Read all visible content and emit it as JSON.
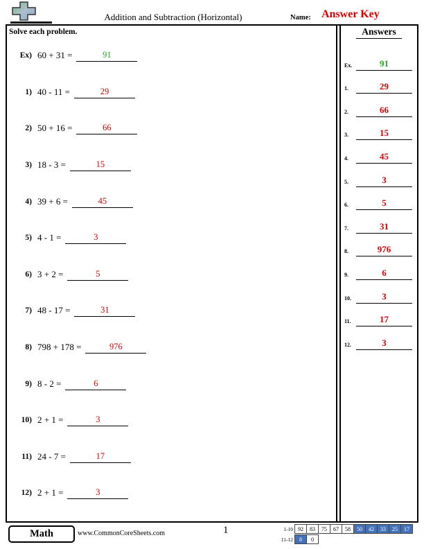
{
  "header": {
    "title": "Addition and Subtraction (Horizontal)",
    "name_label": "Name:",
    "answer_key": "Answer Key"
  },
  "instructions": "Solve each problem.",
  "problems": [
    {
      "label": "Ex)",
      "expression": "60 + 31 =",
      "answer": "91",
      "color": "green"
    },
    {
      "label": "1)",
      "expression": "40 - 11 =",
      "answer": "29",
      "color": "red"
    },
    {
      "label": "2)",
      "expression": "50 + 16 =",
      "answer": "66",
      "color": "red"
    },
    {
      "label": "3)",
      "expression": "18 - 3 =",
      "answer": "15",
      "color": "red"
    },
    {
      "label": "4)",
      "expression": "39 + 6 =",
      "answer": "45",
      "color": "red"
    },
    {
      "label": "5)",
      "expression": "4 - 1 =",
      "answer": "3",
      "color": "red"
    },
    {
      "label": "6)",
      "expression": "3 + 2 =",
      "answer": "5",
      "color": "red"
    },
    {
      "label": "7)",
      "expression": "48 - 17 =",
      "answer": "31",
      "color": "red"
    },
    {
      "label": "8)",
      "expression": "798 + 178 =",
      "answer": "976",
      "color": "red"
    },
    {
      "label": "9)",
      "expression": "8 - 2 =",
      "answer": "6",
      "color": "red"
    },
    {
      "label": "10)",
      "expression": "2 + 1 =",
      "answer": "3",
      "color": "red"
    },
    {
      "label": "11)",
      "expression": "24 - 7 =",
      "answer": "17",
      "color": "red"
    },
    {
      "label": "12)",
      "expression": "2 + 1 =",
      "answer": "3",
      "color": "red"
    }
  ],
  "answers_panel": {
    "title": "Answers",
    "items": [
      {
        "label": "Ex.",
        "value": "91",
        "color": "green"
      },
      {
        "label": "1.",
        "value": "29",
        "color": "red"
      },
      {
        "label": "2.",
        "value": "66",
        "color": "red"
      },
      {
        "label": "3.",
        "value": "15",
        "color": "red"
      },
      {
        "label": "4.",
        "value": "45",
        "color": "red"
      },
      {
        "label": "5.",
        "value": "3",
        "color": "red"
      },
      {
        "label": "6.",
        "value": "5",
        "color": "red"
      },
      {
        "label": "7.",
        "value": "31",
        "color": "red"
      },
      {
        "label": "8.",
        "value": "976",
        "color": "red"
      },
      {
        "label": "9.",
        "value": "6",
        "color": "red"
      },
      {
        "label": "10.",
        "value": "3",
        "color": "red"
      },
      {
        "label": "11.",
        "value": "17",
        "color": "red"
      },
      {
        "label": "12.",
        "value": "3",
        "color": "red"
      }
    ]
  },
  "footer": {
    "subject": "Math",
    "website": "www.CommonCoreSheets.com",
    "page_number": "1",
    "score_table": {
      "rows": [
        {
          "label": "1-10",
          "cells": [
            {
              "v": "92"
            },
            {
              "v": "83"
            },
            {
              "v": "75"
            },
            {
              "v": "67"
            },
            {
              "v": "58"
            },
            {
              "v": "50",
              "hl": true
            },
            {
              "v": "42",
              "hl": true
            },
            {
              "v": "33",
              "hl": true
            },
            {
              "v": "25",
              "hl": true
            },
            {
              "v": "17",
              "hl": true
            }
          ]
        },
        {
          "label": "11-12",
          "cells": [
            {
              "v": "8",
              "hl": true
            },
            {
              "v": "0"
            }
          ]
        }
      ]
    }
  },
  "colors": {
    "red": "#d80000",
    "green": "#1faa1f",
    "blue": "#4472b8"
  }
}
